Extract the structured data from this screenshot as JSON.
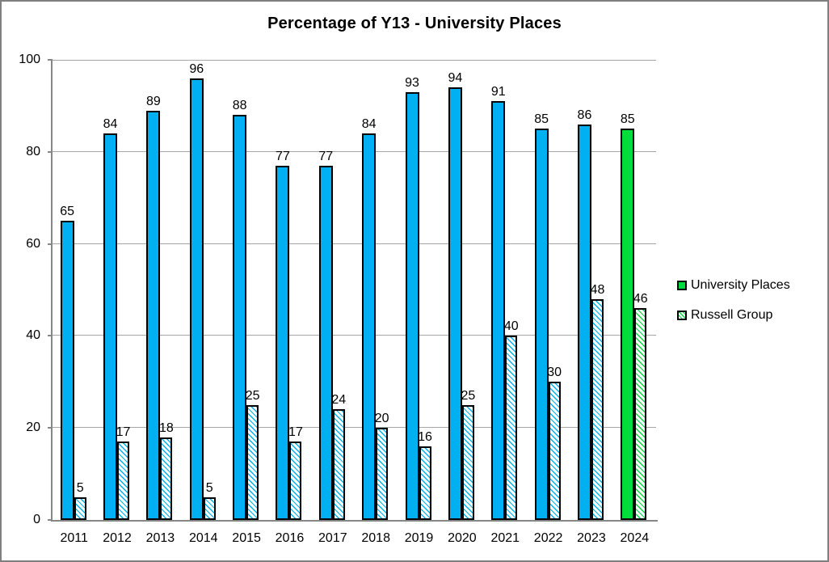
{
  "chart_data": {
    "type": "bar",
    "title": "Percentage of Y13 - University Places",
    "categories": [
      "2011",
      "2012",
      "2013",
      "2014",
      "2015",
      "2016",
      "2017",
      "2018",
      "2019",
      "2020",
      "2021",
      "2022",
      "2023",
      "2024"
    ],
    "series": [
      {
        "name": "University Places",
        "style": "solid",
        "values": [
          65,
          84,
          89,
          96,
          88,
          77,
          77,
          84,
          93,
          94,
          91,
          85,
          86,
          85
        ]
      },
      {
        "name": "Russell Group",
        "style": "hatched",
        "values": [
          5,
          17,
          18,
          5,
          25,
          17,
          24,
          20,
          16,
          25,
          40,
          30,
          48,
          46
        ]
      }
    ],
    "ylim": [
      0,
      100
    ],
    "yticks": [
      0,
      20,
      40,
      60,
      80,
      100
    ],
    "grid": true,
    "data_labels": true,
    "legend_position": "right",
    "highlight_category": "2024",
    "colors": {
      "primary": "#00B0F0",
      "highlight": "#00DC3C",
      "bar_border": "#000000",
      "gridline": "#A6A6A6",
      "axis": "#868686",
      "chart_border": "#7F7F7F",
      "text": "#000000",
      "background": "#FFFFFF"
    }
  }
}
